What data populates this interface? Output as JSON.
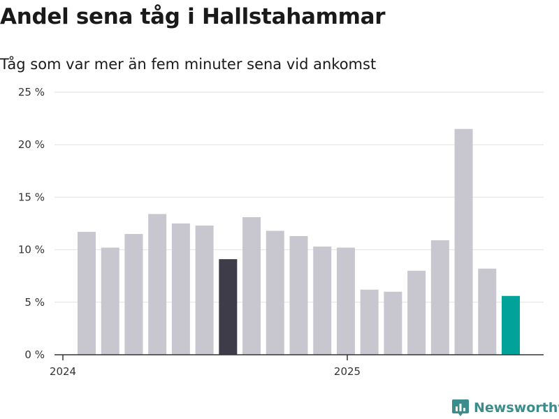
{
  "header": {
    "title": "Andel sena tåg i Hallstahammar",
    "subtitle": "Tåg som var mer än fem minuter sena vid ankomst"
  },
  "brand": {
    "name": "Newsworthy",
    "icon": "newsworthy-logo-icon",
    "color": "#3b8c8c"
  },
  "colors": {
    "default_bar": "#c8c7cf",
    "highlight_bar": "#3d3c48",
    "latest_bar": "#00a29a",
    "grid": "#e2e2e2",
    "axis": "#333333"
  },
  "chart_data": {
    "type": "bar",
    "title": "Andel sena tåg i Hallstahammar",
    "subtitle": "Tåg som var mer än fem minuter sena vid ankomst",
    "xlabel": "",
    "ylabel": "",
    "x": [
      "2024-01",
      "2024-02",
      "2024-03",
      "2024-04",
      "2024-05",
      "2024-06",
      "2024-07",
      "2024-08",
      "2024-09",
      "2024-10",
      "2024-11",
      "2024-12",
      "2025-01",
      "2025-02",
      "2025-03",
      "2025-04",
      "2025-05",
      "2025-06",
      "2025-07"
    ],
    "values": [
      11.7,
      10.2,
      11.5,
      13.4,
      12.5,
      12.3,
      9.1,
      13.1,
      11.8,
      11.3,
      10.3,
      10.2,
      6.2,
      6.0,
      8.0,
      10.9,
      21.5,
      8.2,
      5.6
    ],
    "highlight_index": 6,
    "latest_index": 18,
    "x_tick_labels": [
      "2024",
      "2025"
    ],
    "y_ticks": [
      0,
      5,
      10,
      15,
      20,
      25
    ],
    "y_tick_labels": [
      "0 %",
      "5 %",
      "10 %",
      "15 %",
      "20 %",
      "25 %"
    ],
    "ylim": [
      0,
      25
    ],
    "grid": true,
    "legend": "none"
  }
}
